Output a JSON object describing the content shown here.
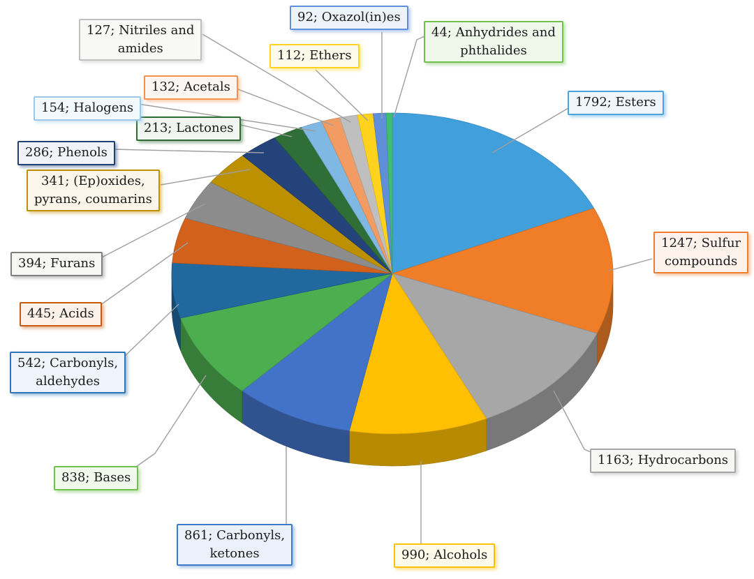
{
  "figure": {
    "type": "3d-pie-figure",
    "background": "#FFFFFF"
  },
  "chart_data": {
    "type": "pie",
    "style": "3d",
    "title": "",
    "legend_position": "callout-labels",
    "start_angle_deg": 0,
    "direction": "clockwise",
    "total": 9773,
    "label_format": "value; category",
    "colors": {
      "leader_line": "#9E9E9E",
      "label_text": "#1B1B1B",
      "background": "#FFFFFF"
    },
    "slices": [
      {
        "name": "Esters",
        "value": 1792,
        "color": "#41A0DC",
        "callout_lines": [
          "1792; Esters"
        ],
        "callout_border": "#4FA3DC",
        "callout_fill": "#EFF6FC"
      },
      {
        "name": "Sulfur compounds",
        "value": 1247,
        "color": "#F07E28",
        "callout_lines": [
          "1247; Sulfur",
          "compounds"
        ],
        "callout_border": "#ED7D31",
        "callout_fill": "#FDF3EC"
      },
      {
        "name": "Hydrocarbons",
        "value": 1163,
        "color": "#A7A7A7",
        "callout_lines": [
          "1163; Hydrocarbons"
        ],
        "callout_border": "#A6A6A6",
        "callout_fill": "#F7F7F5"
      },
      {
        "name": "Alcohols",
        "value": 990,
        "color": "#FFC003",
        "callout_lines": [
          "990; Alcohols"
        ],
        "callout_border": "#FFC000",
        "callout_fill": "#FEFAEA"
      },
      {
        "name": "Carbonyls, ketones",
        "value": 861,
        "color": "#4273C8",
        "callout_lines": [
          "861; Carbonyls,",
          "ketones"
        ],
        "callout_border": "#3E7AC8",
        "callout_fill": "#EAF1FA"
      },
      {
        "name": "Bases",
        "value": 838,
        "color": "#4CAE4F",
        "callout_lines": [
          "838; Bases"
        ],
        "callout_border": "#70C050",
        "callout_fill": "#F1F9EC"
      },
      {
        "name": "Carbonyls, aldehydes",
        "value": 542,
        "color": "#20689E",
        "callout_lines": [
          "542; Carbonyls,",
          "aldehydes"
        ],
        "callout_border": "#2E75B6",
        "callout_fill": "#EDF4FB"
      },
      {
        "name": "Acids",
        "value": 445,
        "color": "#D2611C",
        "callout_lines": [
          "445; Acids"
        ],
        "callout_border": "#C55A11",
        "callout_fill": "#FCF2EA"
      },
      {
        "name": "Furans",
        "value": 394,
        "color": "#8C8C8C",
        "callout_lines": [
          "394; Furans"
        ],
        "callout_border": "#7F7F7F",
        "callout_fill": "#F6F6F4"
      },
      {
        "name": "(Ep)oxides, pyrans, coumarins",
        "value": 341,
        "color": "#BC9000",
        "callout_lines": [
          "341; (Ep)oxides,",
          "pyrans, coumarins"
        ],
        "callout_border": "#BF9000",
        "callout_fill": "#FBF6E9"
      },
      {
        "name": "Phenols",
        "value": 286,
        "color": "#24437A",
        "callout_lines": [
          "286; Phenols"
        ],
        "callout_border": "#1F4077",
        "callout_fill": "#F1F3F8"
      },
      {
        "name": "Lactones",
        "value": 213,
        "color": "#2F6E36",
        "callout_lines": [
          "213; Lactones"
        ],
        "callout_border": "#2E6B34",
        "callout_fill": "#F0F6EF"
      },
      {
        "name": "Halogens",
        "value": 154,
        "color": "#7FB8E2",
        "callout_lines": [
          "154; Halogens"
        ],
        "callout_border": "#9CC7E8",
        "callout_fill": "#F2F9FD"
      },
      {
        "name": "Acetals",
        "value": 132,
        "color": "#F29B62",
        "callout_lines": [
          "132; Acetals"
        ],
        "callout_border": "#F4914E",
        "callout_fill": "#FDF5EF"
      },
      {
        "name": "Nitriles and amides",
        "value": 127,
        "color": "#BFBFBF",
        "callout_lines": [
          "127; Nitriles and",
          "amides"
        ],
        "callout_border": "#BFBFBF",
        "callout_fill": "#F8F8F6"
      },
      {
        "name": "Ethers",
        "value": 112,
        "color": "#FFD21E",
        "callout_lines": [
          "112; Ethers"
        ],
        "callout_border": "#FFD21E",
        "callout_fill": "#FEFBEA"
      },
      {
        "name": "Oxazol(in)es",
        "value": 92,
        "color": "#5F8FD8",
        "callout_lines": [
          "92; Oxazol(in)es"
        ],
        "callout_border": "#5F8FD8",
        "callout_fill": "#EDF3FB"
      },
      {
        "name": "Anhydrides and phthalides",
        "value": 44,
        "color": "#3FBE72",
        "callout_lines": [
          "44; Anhydrides and",
          "phthalides"
        ],
        "callout_border": "#70C050",
        "callout_fill": "#F0F8EC"
      }
    ]
  }
}
